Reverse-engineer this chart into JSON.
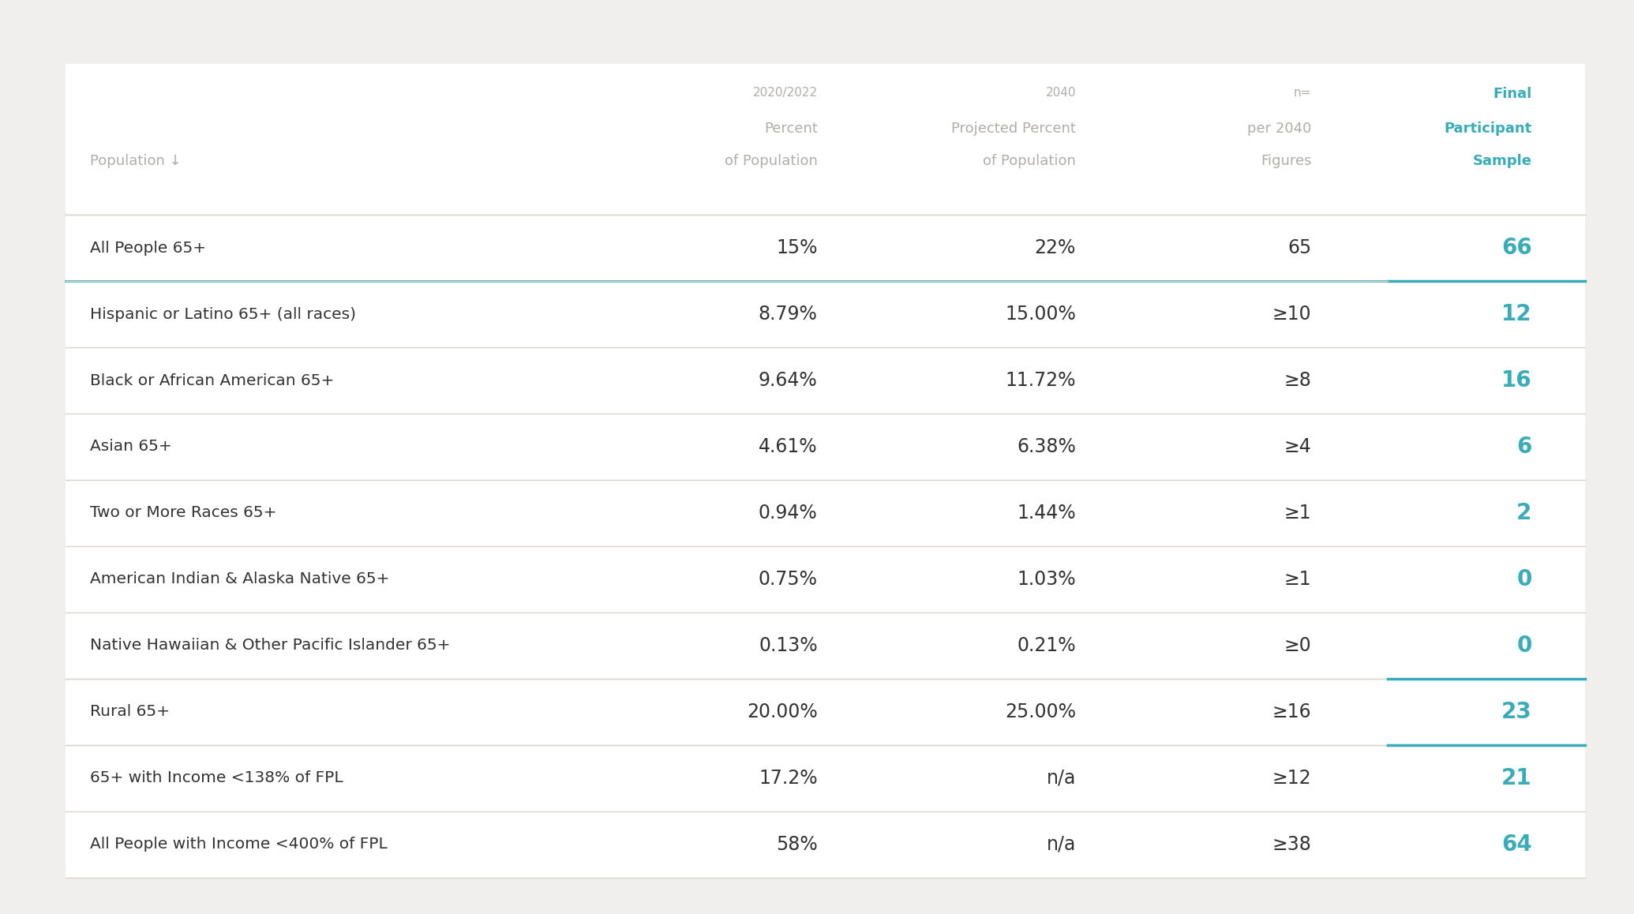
{
  "background_color": "#f0efed",
  "header_color": "#b0adaa",
  "teal_color": "#3aacb8",
  "dark_text": "#333333",
  "divider_color": "#d8d5d0",
  "teal_divider_color": "#3aacb8",
  "rows": [
    {
      "label": "All People 65+",
      "pct_2020": "15%",
      "pct_2040": "22%",
      "n": "65",
      "sample": "66",
      "teal_before": false,
      "teal_after": false,
      "gray_after": false
    },
    {
      "label": "Hispanic or Latino 65+ (all races)",
      "pct_2020": "8.79%",
      "pct_2040": "15.00%",
      "n": "≥10",
      "sample": "12",
      "teal_before": true,
      "teal_after": false,
      "gray_after": false
    },
    {
      "label": "Black or African American 65+",
      "pct_2020": "9.64%",
      "pct_2040": "11.72%",
      "n": "≥8",
      "sample": "16",
      "teal_before": false,
      "teal_after": false,
      "gray_after": false
    },
    {
      "label": "Asian 65+",
      "pct_2020": "4.61%",
      "pct_2040": "6.38%",
      "n": "≥4",
      "sample": "6",
      "teal_before": false,
      "teal_after": false,
      "gray_after": false
    },
    {
      "label": "Two or More Races 65+",
      "pct_2020": "0.94%",
      "pct_2040": "1.44%",
      "n": "≥1",
      "sample": "2",
      "teal_before": false,
      "teal_after": false,
      "gray_after": false
    },
    {
      "label": "American Indian & Alaska Native 65+",
      "pct_2020": "0.75%",
      "pct_2040": "1.03%",
      "n": "≥1",
      "sample": "0",
      "teal_before": false,
      "teal_after": false,
      "gray_after": false
    },
    {
      "label": "Native Hawaiian & Other Pacific Islander 65+",
      "pct_2020": "0.13%",
      "pct_2040": "0.21%",
      "n": "≥0",
      "sample": "0",
      "teal_before": false,
      "teal_after": true,
      "gray_after": false
    },
    {
      "label": "Rural 65+",
      "pct_2020": "20.00%",
      "pct_2040": "25.00%",
      "n": "≥16",
      "sample": "23",
      "teal_before": false,
      "teal_after": true,
      "gray_after": false
    },
    {
      "label": "65+ with Income <138% of FPL",
      "pct_2020": "17.2%",
      "pct_2040": "n/a",
      "n": "≥12",
      "sample": "21",
      "teal_before": false,
      "teal_after": false,
      "gray_after": false
    },
    {
      "label": "All People with Income <400% of FPL",
      "pct_2020": "58%",
      "pct_2040": "n/a",
      "n": "≥38",
      "sample": "64",
      "teal_before": false,
      "teal_after": false,
      "gray_after": false
    }
  ]
}
